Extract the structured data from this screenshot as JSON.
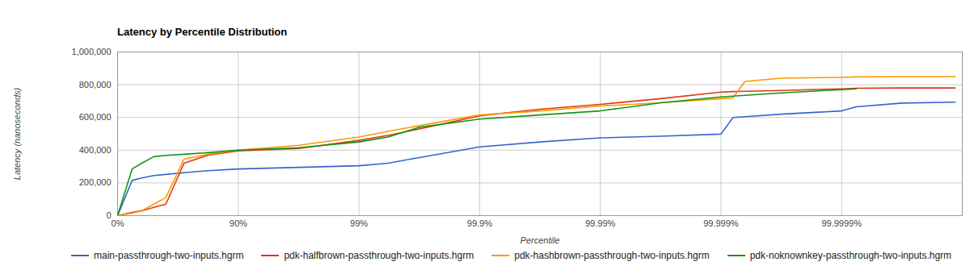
{
  "chart_data": {
    "type": "line",
    "title": "Latency by Percentile Distribution",
    "xlabel": "Percentile",
    "ylabel": "Latency (nanoseconds)",
    "x": [
      0,
      24.14,
      36.9,
      49.88,
      60.19,
      71.82,
      82.22,
      90,
      96.84,
      99,
      99.425,
      99.684,
      99.9,
      99.9684,
      99.99,
      99.99684,
      99.999,
      99.9992057,
      99.999369,
      99.9996838,
      99.9999,
      99.99992414,
      99.99996838,
      99.99998852
    ],
    "series": [
      {
        "name": "main-passthrough-two-inputs.hgrm",
        "color": "#3366cc",
        "values": [
          0,
          215000,
          230000,
          245000,
          252000,
          262000,
          275000,
          285000,
          295000,
          305000,
          320000,
          355000,
          420000,
          450000,
          475000,
          485000,
          498000,
          600000,
          605000,
          620000,
          640000,
          665000,
          688000,
          693000
        ]
      },
      {
        "name": "pdk-halfbrown-passthrough-two-inputs.hgrm",
        "color": "#dc3912",
        "values": [
          0,
          20000,
          30000,
          50000,
          70000,
          320000,
          370000,
          395000,
          410000,
          460000,
          490000,
          530000,
          610000,
          650000,
          680000,
          715000,
          755000,
          758000,
          760000,
          765000,
          775000,
          778000,
          780000,
          780000
        ]
      },
      {
        "name": "pdk-hashbrown-passthrough-two-inputs.hgrm",
        "color": "#ff9900",
        "values": [
          0,
          15000,
          30000,
          70000,
          110000,
          345000,
          375000,
          400000,
          430000,
          480000,
          515000,
          550000,
          615000,
          640000,
          670000,
          690000,
          715000,
          720000,
          820000,
          840000,
          845000,
          848000,
          850000,
          850000
        ]
      },
      {
        "name": "pdk-noknownkey-passthrough-two-inputs.hgrm",
        "color": "#109618",
        "values": [
          0,
          285000,
          320000,
          360000,
          368000,
          375000,
          385000,
          400000,
          415000,
          450000,
          480000,
          540000,
          590000,
          615000,
          640000,
          690000,
          725000,
          730000,
          735000,
          750000,
          770000,
          775000,
          null,
          null
        ]
      }
    ],
    "xlim": [
      0,
      99.99999
    ],
    "ylim": [
      0,
      1000000
    ],
    "xticks": [
      {
        "value": 0,
        "label": "0%"
      },
      {
        "value": 90,
        "label": "90%"
      },
      {
        "value": 99,
        "label": "99%"
      },
      {
        "value": 99.9,
        "label": "99.9%"
      },
      {
        "value": 99.99,
        "label": "99.99%"
      },
      {
        "value": 99.999,
        "label": "99.999%"
      },
      {
        "value": 99.9999,
        "label": "99.9999%"
      }
    ],
    "yticks": [
      0,
      {
        "value": 200000,
        "label": "200,000"
      },
      {
        "value": 400000,
        "label": "400,000"
      },
      {
        "value": 600000,
        "label": "600,000"
      },
      {
        "value": 800000,
        "label": "800,000"
      },
      {
        "value": 1000000,
        "label": "1,000,000"
      }
    ],
    "grid": true,
    "legend": "bottom"
  }
}
